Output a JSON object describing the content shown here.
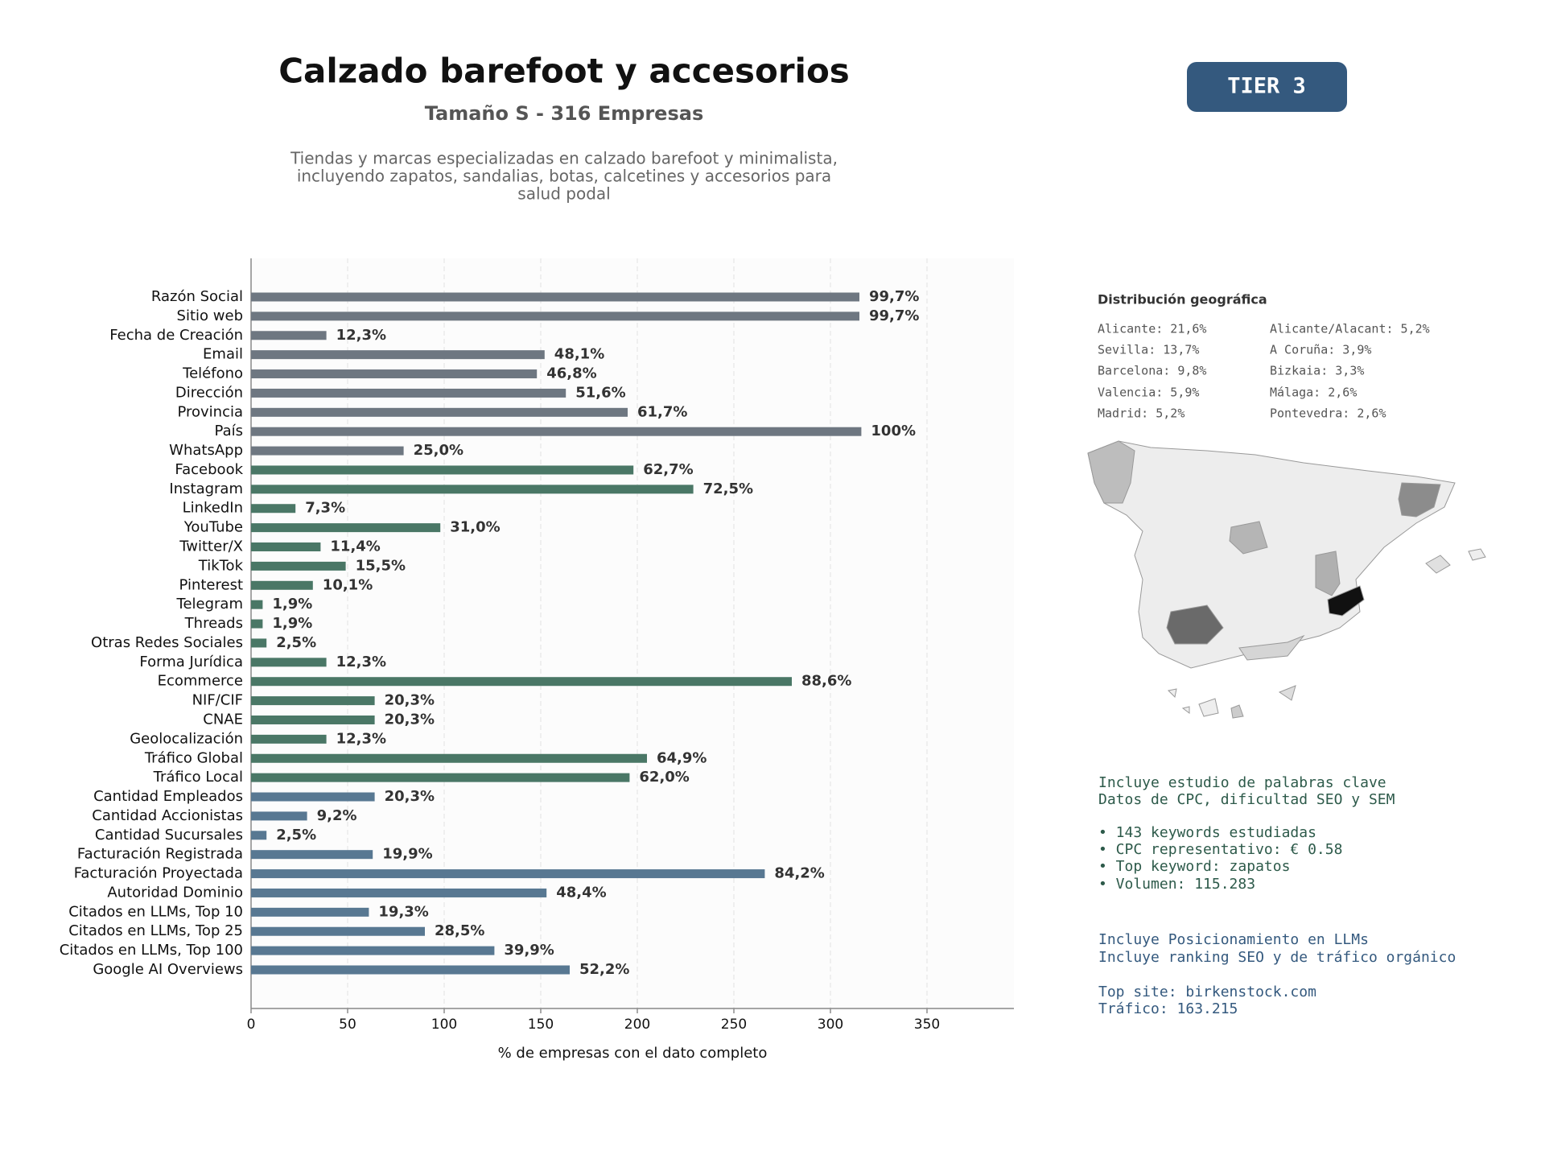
{
  "chart_data": {
    "type": "barh",
    "title": "Calzado barefoot y accesorios",
    "subtitle": "Tamaño S - 316 Empresas",
    "description": [
      "Tiendas y marcas especializadas en calzado barefoot y minimalista,",
      "incluyendo zapatos, sandalias, botas, calcetines y accesorios para",
      "salud podal"
    ],
    "badge": "TIER 3",
    "xlabel": "% de empresas con el dato completo",
    "categories": [
      "Razón Social",
      "Sitio web",
      "Fecha de Creación",
      "Email",
      "Teléfono",
      "Dirección",
      "Provincia",
      "País",
      "WhatsApp",
      "Facebook",
      "Instagram",
      "LinkedIn",
      "YouTube",
      "Twitter/X",
      "TikTok",
      "Pinterest",
      "Telegram",
      "Threads",
      "Otras Redes Sociales",
      "Forma Jurídica",
      "Ecommerce",
      "NIF/CIF",
      "CNAE",
      "Geolocalización",
      "Tráfico Global",
      "Tráfico Local",
      "Cantidad Empleados",
      "Cantidad Accionistas",
      "Cantidad Sucursales",
      "Facturación Registrada",
      "Facturación Proyectada",
      "Autoridad Dominio",
      "Citados en LLMs, Top 10",
      "Citados en LLMs, Top 25",
      "Citados en LLMs, Top 100",
      "Google AI Overviews"
    ],
    "values": [
      315,
      315,
      39,
      152,
      148,
      163,
      195,
      316,
      79,
      198,
      229,
      23,
      98,
      36,
      49,
      32,
      6,
      6,
      8,
      39,
      280,
      64,
      64,
      39,
      205,
      196,
      64,
      29,
      8,
      63,
      266,
      153,
      61,
      90,
      126,
      165
    ],
    "value_labels": [
      "99,7%",
      "99,7%",
      "12,3%",
      "48,1%",
      "46,8%",
      "51,6%",
      "61,7%",
      "100%",
      "25,0%",
      "62,7%",
      "72,5%",
      "7,3%",
      "31,0%",
      "11,4%",
      "15,5%",
      "10,1%",
      "1,9%",
      "1,9%",
      "2,5%",
      "12,3%",
      "88,6%",
      "20,3%",
      "20,3%",
      "12,3%",
      "64,9%",
      "62,0%",
      "20,3%",
      "9,2%",
      "2,5%",
      "19,9%",
      "84,2%",
      "48,4%",
      "19,3%",
      "28,5%",
      "39,9%",
      "52,2%"
    ],
    "colors": [
      "#6e7781",
      "#6e7781",
      "#6e7781",
      "#6e7781",
      "#6e7781",
      "#6e7781",
      "#6e7781",
      "#6e7781",
      "#6e7781",
      "#4a7766",
      "#4a7766",
      "#4a7766",
      "#4a7766",
      "#4a7766",
      "#4a7766",
      "#4a7766",
      "#4a7766",
      "#4a7766",
      "#4a7766",
      "#4a7766",
      "#4a7766",
      "#4a7766",
      "#4a7766",
      "#4a7766",
      "#4a7766",
      "#4a7766",
      "#587892",
      "#587892",
      "#587892",
      "#587892",
      "#587892",
      "#587892",
      "#587892",
      "#587892",
      "#587892",
      "#587892"
    ],
    "xlim": [
      0,
      395
    ],
    "xticks": [
      0,
      50,
      100,
      150,
      200,
      250,
      300,
      350
    ],
    "grid": true
  },
  "geo": {
    "title": "Distribución geográfica",
    "entries": [
      "Alicante: 21,6%",
      "Sevilla: 13,7%",
      "Barcelona: 9,8%",
      "Valencia: 5,9%",
      "Madrid: 5,2%",
      "Alicante/Alacant: 5,2%",
      "A Coruña: 3,9%",
      "Bizkaia: 3,3%",
      "Málaga: 2,6%",
      "Pontevedra: 2,6%"
    ]
  },
  "keywords": {
    "intro": [
      "Incluye estudio de palabras clave",
      "Datos de CPC, dificultad SEO y SEM"
    ],
    "bullets": [
      "• 143 keywords estudiadas",
      "• CPC representativo: € 0.58",
      "• Top keyword: zapatos",
      "• Volumen: 115.283"
    ]
  },
  "llm": {
    "intro": [
      "Incluye Posicionamiento en LLMs",
      "Incluye ranking SEO y de tráfico orgánico"
    ],
    "top": [
      "Top site: birkenstock.com",
      "Tráfico: 163.215"
    ]
  }
}
